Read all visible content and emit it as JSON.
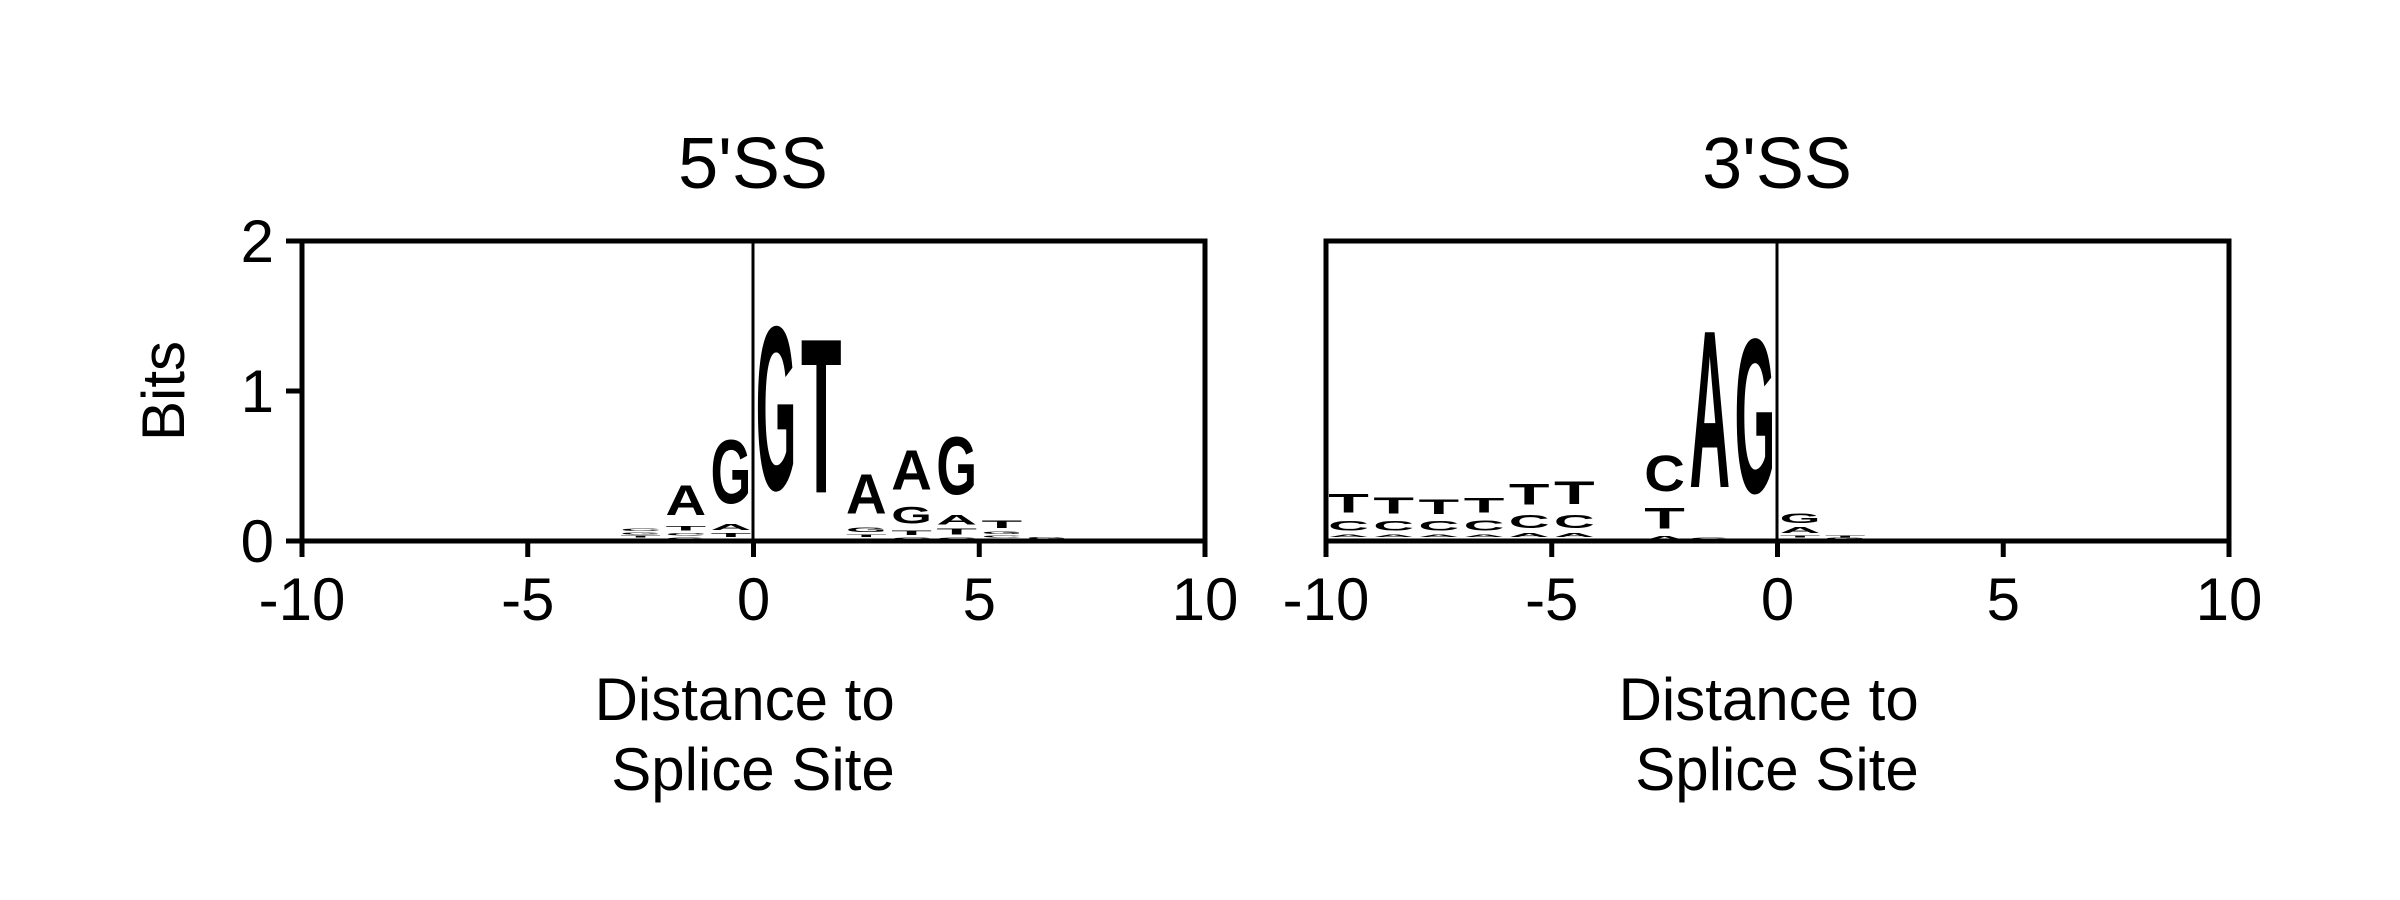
{
  "colors": {
    "A": "#2a8466",
    "C": "#2f539b",
    "G": "#f6a930",
    "T": "#c3272e"
  },
  "chart_data": [
    {
      "type": "sequence-logo",
      "title": "5'SS",
      "xlabel": "Distance to\nSplice Site",
      "ylabel": "Bits",
      "xlim": [
        -10,
        10
      ],
      "ylim": [
        0,
        2
      ],
      "xticks": [
        "-10",
        "-5",
        "0",
        "5",
        "10"
      ],
      "yticks": [
        "0",
        "1",
        "2"
      ],
      "reference_line_x": 0,
      "positions": [
        {
          "x": -2.5,
          "letters": [
            {
              "base": "A",
              "bits": 0.02
            },
            {
              "base": "T",
              "bits": 0.02
            },
            {
              "base": "G",
              "bits": 0.02
            },
            {
              "base": "C",
              "bits": 0.03
            }
          ]
        },
        {
          "x": -1.5,
          "letters": [
            {
              "base": "G",
              "bits": 0.03
            },
            {
              "base": "C",
              "bits": 0.03
            },
            {
              "base": "T",
              "bits": 0.05
            },
            {
              "base": "A",
              "bits": 0.32
            }
          ]
        },
        {
          "x": -0.5,
          "letters": [
            {
              "base": "C",
              "bits": 0.02
            },
            {
              "base": "T",
              "bits": 0.04
            },
            {
              "base": "A",
              "bits": 0.06
            },
            {
              "base": "G",
              "bits": 0.68
            }
          ]
        },
        {
          "x": 0.5,
          "letters": [
            {
              "base": "G",
              "bits": 1.75
            }
          ]
        },
        {
          "x": 1.5,
          "letters": [
            {
              "base": "T",
              "bits": 1.65
            }
          ]
        },
        {
          "x": 2.5,
          "letters": [
            {
              "base": "C",
              "bits": 0.02
            },
            {
              "base": "T",
              "bits": 0.03
            },
            {
              "base": "G",
              "bits": 0.05
            },
            {
              "base": "A",
              "bits": 0.42
            }
          ]
        },
        {
          "x": 3.5,
          "letters": [
            {
              "base": "C",
              "bits": 0.03
            },
            {
              "base": "T",
              "bits": 0.05
            },
            {
              "base": "G",
              "bits": 0.18
            },
            {
              "base": "A",
              "bits": 0.42
            }
          ]
        },
        {
          "x": 4.5,
          "letters": [
            {
              "base": "C",
              "bits": 0.03
            },
            {
              "base": "T",
              "bits": 0.06
            },
            {
              "base": "A",
              "bits": 0.1
            },
            {
              "base": "G",
              "bits": 0.62
            }
          ]
        },
        {
          "x": 5.5,
          "letters": [
            {
              "base": "A",
              "bits": 0.02
            },
            {
              "base": "C",
              "bits": 0.02
            },
            {
              "base": "G",
              "bits": 0.03
            },
            {
              "base": "T",
              "bits": 0.08
            }
          ]
        },
        {
          "x": 6.5,
          "letters": [
            {
              "base": "T",
              "bits": 0.01
            },
            {
              "base": "G",
              "bits": 0.02
            }
          ]
        }
      ]
    },
    {
      "type": "sequence-logo",
      "title": "3'SS",
      "xlabel": "Distance to\nSplice Site",
      "ylabel": "",
      "xlim": [
        -10,
        10
      ],
      "ylim": [
        0,
        2
      ],
      "xticks": [
        "-10",
        "-5",
        "0",
        "5",
        "10"
      ],
      "yticks": [],
      "reference_line_x": 0,
      "positions": [
        {
          "x": -9.5,
          "letters": [
            {
              "base": "G",
              "bits": 0.02
            },
            {
              "base": "A",
              "bits": 0.03
            },
            {
              "base": "C",
              "bits": 0.1
            },
            {
              "base": "T",
              "bits": 0.2
            }
          ]
        },
        {
          "x": -8.5,
          "letters": [
            {
              "base": "G",
              "bits": 0.02
            },
            {
              "base": "A",
              "bits": 0.03
            },
            {
              "base": "C",
              "bits": 0.1
            },
            {
              "base": "T",
              "bits": 0.17
            }
          ]
        },
        {
          "x": -7.5,
          "letters": [
            {
              "base": "G",
              "bits": 0.02
            },
            {
              "base": "A",
              "bits": 0.03
            },
            {
              "base": "C",
              "bits": 0.1
            },
            {
              "base": "T",
              "bits": 0.16
            }
          ]
        },
        {
          "x": -6.5,
          "letters": [
            {
              "base": "G",
              "bits": 0.02
            },
            {
              "base": "A",
              "bits": 0.03
            },
            {
              "base": "C",
              "bits": 0.11
            },
            {
              "base": "T",
              "bits": 0.16
            }
          ]
        },
        {
          "x": -5.5,
          "letters": [
            {
              "base": "G",
              "bits": 0.02
            },
            {
              "base": "A",
              "bits": 0.04
            },
            {
              "base": "C",
              "bits": 0.14
            },
            {
              "base": "T",
              "bits": 0.22
            }
          ]
        },
        {
          "x": -4.5,
          "letters": [
            {
              "base": "G",
              "bits": 0.02
            },
            {
              "base": "A",
              "bits": 0.04
            },
            {
              "base": "C",
              "bits": 0.14
            },
            {
              "base": "T",
              "bits": 0.24
            }
          ]
        },
        {
          "x": -2.5,
          "letters": [
            {
              "base": "A",
              "bits": 0.04
            },
            {
              "base": "T",
              "bits": 0.22
            },
            {
              "base": "C",
              "bits": 0.38
            }
          ]
        },
        {
          "x": -1.5,
          "letters": [
            {
              "base": "G",
              "bits": 0.03
            },
            {
              "base": "A",
              "bits": 1.68
            }
          ]
        },
        {
          "x": -0.5,
          "letters": [
            {
              "base": "G",
              "bits": 1.65
            }
          ]
        },
        {
          "x": 0.5,
          "letters": [
            {
              "base": "C",
              "bits": 0.02
            },
            {
              "base": "T",
              "bits": 0.02
            },
            {
              "base": "A",
              "bits": 0.06
            },
            {
              "base": "G",
              "bits": 0.1
            }
          ]
        },
        {
          "x": 1.5,
          "letters": [
            {
              "base": "A",
              "bits": 0.01
            },
            {
              "base": "G",
              "bits": 0.01
            },
            {
              "base": "T",
              "bits": 0.02
            }
          ]
        }
      ]
    }
  ]
}
